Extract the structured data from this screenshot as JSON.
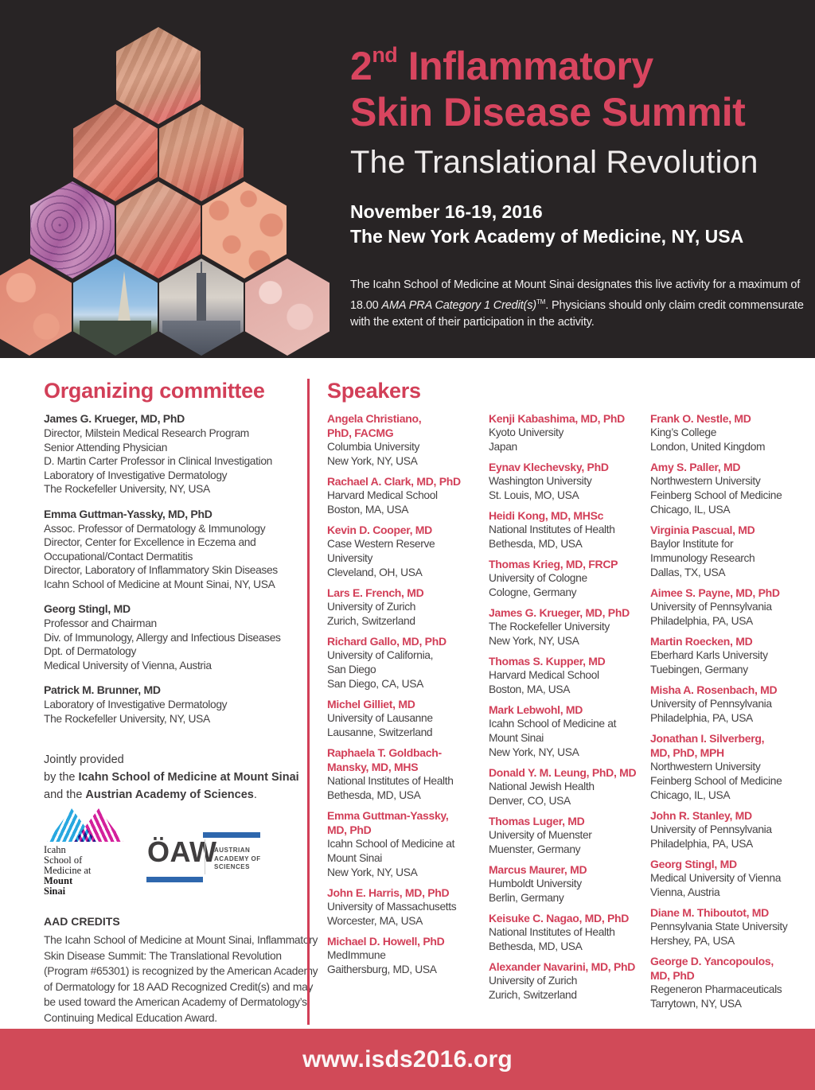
{
  "colors": {
    "accent": "#d23f58",
    "title_red": "#d8455f",
    "header_bg": "#282425",
    "footer_bg": "#d14a58",
    "sinai_cyan": "#29a8e0",
    "sinai_magenta": "#d4219c",
    "oaw_blue": "#2e67ad"
  },
  "header": {
    "title_num": "2",
    "title_sup": "nd",
    "title_rest": " Inflammatory",
    "title_line2": "Skin Disease Summit",
    "subtitle": "The Translational Revolution",
    "date": "November 16-19, 2016",
    "venue": "The New York Academy of Medicine, NY, USA",
    "credit_line1": "The Icahn School of Medicine at Mount Sinai designates this live activity for a maximum of",
    "credit_line2_pre": "18.00 ",
    "credit_italic": "AMA PRA Category 1 Credit(s)",
    "credit_tm": "TM",
    "credit_line2_post": ". Physicians should only claim credit commensurate",
    "credit_line3": "with the extent of their participation in the activity.",
    "hex_images": [
      "skin-surface-illustration",
      "skin-cells-illustration-1",
      "skin-cells-illustration-2",
      "histology-purple-micrograph",
      "skin-cells-illustration-3",
      "skin-rash-photo",
      "skin-texture-photo",
      "vienna-cathedral-photo",
      "new-york-skyline-photo",
      "histology-pink-micrograph"
    ]
  },
  "organizing": {
    "heading": "Organizing committee",
    "members": [
      {
        "name": "James G. Krueger, MD, PhD",
        "lines": [
          "Director, Milstein Medical Research Program",
          "Senior Attending Physician",
          "D. Martin Carter Professor in Clinical Investigation",
          "Laboratory of Investigative Dermatology",
          "The Rockefeller University, NY, USA"
        ]
      },
      {
        "name": "Emma Guttman-Yassky, MD, PhD",
        "lines": [
          "Assoc. Professor of Dermatology & Immunology",
          "Director, Center for Excellence in Eczema and",
          "Occupational/Contact Dermatitis",
          "Director, Laboratory of Inflammatory Skin Diseases",
          "Icahn School of Medicine at Mount Sinai, NY, USA"
        ]
      },
      {
        "name": "Georg Stingl, MD",
        "lines": [
          "Professor and Chairman",
          "Div. of Immunology, Allergy and Infectious Diseases",
          "Dpt. of Dermatology",
          "Medical University of Vienna, Austria"
        ]
      },
      {
        "name": "Patrick M. Brunner, MD",
        "lines": [
          "Laboratory of Investigative Dermatology",
          "The Rockefeller University, NY, USA"
        ]
      }
    ],
    "jointly_line1": "Jointly provided",
    "jointly_line2_pre": "by the ",
    "jointly_line2_bold": "Icahn School of Medicine at Mount Sinai",
    "jointly_line3_pre": "and the ",
    "jointly_line3_bold": "Austrian Academy of Sciences",
    "jointly_line3_post": "."
  },
  "logos": {
    "sinai_lines": [
      {
        "text": "Icahn",
        "bold": false
      },
      {
        "text": "School of",
        "bold": false
      },
      {
        "text": "Medicine at",
        "bold": false
      },
      {
        "text": "Mount",
        "bold": true
      },
      {
        "text": "Sinai",
        "bold": true
      }
    ],
    "oaw_word": "ÖAW",
    "oaw_caption_lines": [
      "AUSTRIAN",
      "ACADEMY OF",
      "SCIENCES"
    ]
  },
  "aad": {
    "heading": "AAD CREDITS",
    "lines": [
      "The Icahn School of Medicine at Mount Sinai, Inflammatory",
      "Skin Disease Summit: The Translational Revolution",
      "(Program #65301) is recognized by the American Academy",
      "of Dermatology for 18 AAD Recognized Credit(s) and may",
      "be used toward the American Academy of Dermatology’s",
      "Continuing Medical Education Award."
    ]
  },
  "speakers": {
    "heading": "Speakers",
    "columns": [
      {
        "items": [
          {
            "name_lines": [
              "Angela Christiano,",
              "PhD, FACMG"
            ],
            "lines": [
              "Columbia University",
              "New York, NY, USA"
            ]
          },
          {
            "name_lines": [
              "Rachael A. Clark, MD, PhD"
            ],
            "lines": [
              "Harvard Medical School",
              "Boston, MA, USA"
            ]
          },
          {
            "name_lines": [
              "Kevin D. Cooper, MD"
            ],
            "lines": [
              "Case Western Reserve",
              "University",
              "Cleveland, OH, USA"
            ]
          },
          {
            "name_lines": [
              "Lars E. French, MD"
            ],
            "lines": [
              "University of Zurich",
              "Zurich, Switzerland"
            ]
          },
          {
            "name_lines": [
              "Richard Gallo, MD, PhD"
            ],
            "lines": [
              "University of California,",
              "San Diego",
              "San Diego, CA, USA"
            ]
          },
          {
            "name_lines": [
              "Michel Gilliet, MD"
            ],
            "lines": [
              "University of Lausanne",
              "Lausanne, Switzerland"
            ]
          },
          {
            "name_lines": [
              "Raphaela T. Goldbach-",
              "Mansky, MD, MHS"
            ],
            "lines": [
              "National Institutes of Health",
              "Bethesda, MD, USA"
            ]
          },
          {
            "name_lines": [
              "Emma Guttman-Yassky,",
              "MD, PhD"
            ],
            "lines": [
              "Icahn School of Medicine at",
              "Mount Sinai",
              "New York, NY, USA"
            ]
          },
          {
            "name_lines": [
              "John E. Harris, MD, PhD"
            ],
            "lines": [
              "University of Massachusetts",
              "Worcester, MA, USA"
            ]
          },
          {
            "name_lines": [
              "Michael D. Howell, PhD"
            ],
            "lines": [
              "MedImmune",
              "Gaithersburg, MD, USA"
            ]
          }
        ]
      },
      {
        "items": [
          {
            "name_lines": [
              "Kenji Kabashima, MD, PhD"
            ],
            "lines": [
              "Kyoto University",
              "Japan"
            ]
          },
          {
            "name_lines": [
              "Eynav Klechevsky, PhD"
            ],
            "lines": [
              "Washington University",
              "St. Louis, MO, USA"
            ]
          },
          {
            "name_lines": [
              "Heidi Kong, MD, MHSc"
            ],
            "lines": [
              "National Institutes of Health",
              "Bethesda, MD, USA"
            ]
          },
          {
            "name_lines": [
              "Thomas Krieg, MD, FRCP"
            ],
            "lines": [
              "University of Cologne",
              "Cologne, Germany"
            ]
          },
          {
            "name_lines": [
              "James G. Krueger, MD, PhD"
            ],
            "lines": [
              "The Rockefeller University",
              "New York, NY, USA"
            ]
          },
          {
            "name_lines": [
              "Thomas S. Kupper, MD"
            ],
            "lines": [
              "Harvard Medical School",
              "Boston, MA, USA"
            ]
          },
          {
            "name_lines": [
              "Mark Lebwohl, MD"
            ],
            "lines": [
              "Icahn School of Medicine at",
              "Mount Sinai",
              "New York, NY, USA"
            ]
          },
          {
            "name_lines": [
              "Donald Y. M. Leung, PhD, MD"
            ],
            "lines": [
              "National Jewish Health",
              "Denver, CO, USA"
            ]
          },
          {
            "name_lines": [
              "Thomas Luger, MD"
            ],
            "lines": [
              "University of Muenster",
              "Muenster, Germany"
            ]
          },
          {
            "name_lines": [
              "Marcus Maurer, MD"
            ],
            "lines": [
              "Humboldt University",
              "Berlin, Germany"
            ]
          },
          {
            "name_lines": [
              "Keisuke C. Nagao, MD, PhD"
            ],
            "lines": [
              "National Institutes of Health",
              "Bethesda, MD, USA"
            ]
          },
          {
            "name_lines": [
              "Alexander Navarini, MD, PhD"
            ],
            "lines": [
              "University of Zurich",
              "Zurich, Switzerland"
            ]
          }
        ]
      },
      {
        "items": [
          {
            "name_lines": [
              "Frank O. Nestle, MD"
            ],
            "lines": [
              "King’s College",
              "London, United Kingdom"
            ]
          },
          {
            "name_lines": [
              "Amy S. Paller, MD"
            ],
            "lines": [
              "Northwestern University",
              "Feinberg School of Medicine",
              "Chicago, IL, USA"
            ]
          },
          {
            "name_lines": [
              "Virginia Pascual, MD"
            ],
            "lines": [
              "Baylor Institute for",
              "Immunology Research",
              "Dallas, TX, USA"
            ]
          },
          {
            "name_lines": [
              "Aimee S. Payne, MD, PhD"
            ],
            "lines": [
              "University of Pennsylvania",
              "Philadelphia, PA, USA"
            ]
          },
          {
            "name_lines": [
              "Martin Roecken, MD"
            ],
            "lines": [
              "Eberhard Karls University",
              "Tuebingen, Germany"
            ]
          },
          {
            "name_lines": [
              "Misha A. Rosenbach, MD"
            ],
            "lines": [
              "University of Pennsylvania",
              "Philadelphia, PA, USA"
            ]
          },
          {
            "name_lines": [
              "Jonathan I. Silverberg,",
              "MD, PhD, MPH"
            ],
            "lines": [
              "Northwestern University",
              "Feinberg School of Medicine",
              "Chicago, IL, USA"
            ]
          },
          {
            "name_lines": [
              "John R. Stanley, MD"
            ],
            "lines": [
              "University of Pennsylvania",
              "Philadelphia, PA, USA"
            ]
          },
          {
            "name_lines": [
              "Georg Stingl, MD"
            ],
            "lines": [
              "Medical University of Vienna",
              "Vienna, Austria"
            ]
          },
          {
            "name_lines": [
              "Diane M. Thiboutot, MD"
            ],
            "lines": [
              "Pennsylvania State University",
              "Hershey, PA, USA"
            ]
          },
          {
            "name_lines": [
              "George D. Yancopoulos,",
              "MD, PhD"
            ],
            "lines": [
              "Regeneron Pharmaceuticals",
              "Tarrytown, NY, USA"
            ]
          }
        ]
      }
    ]
  },
  "footer": {
    "url": "www.isds2016.org"
  }
}
